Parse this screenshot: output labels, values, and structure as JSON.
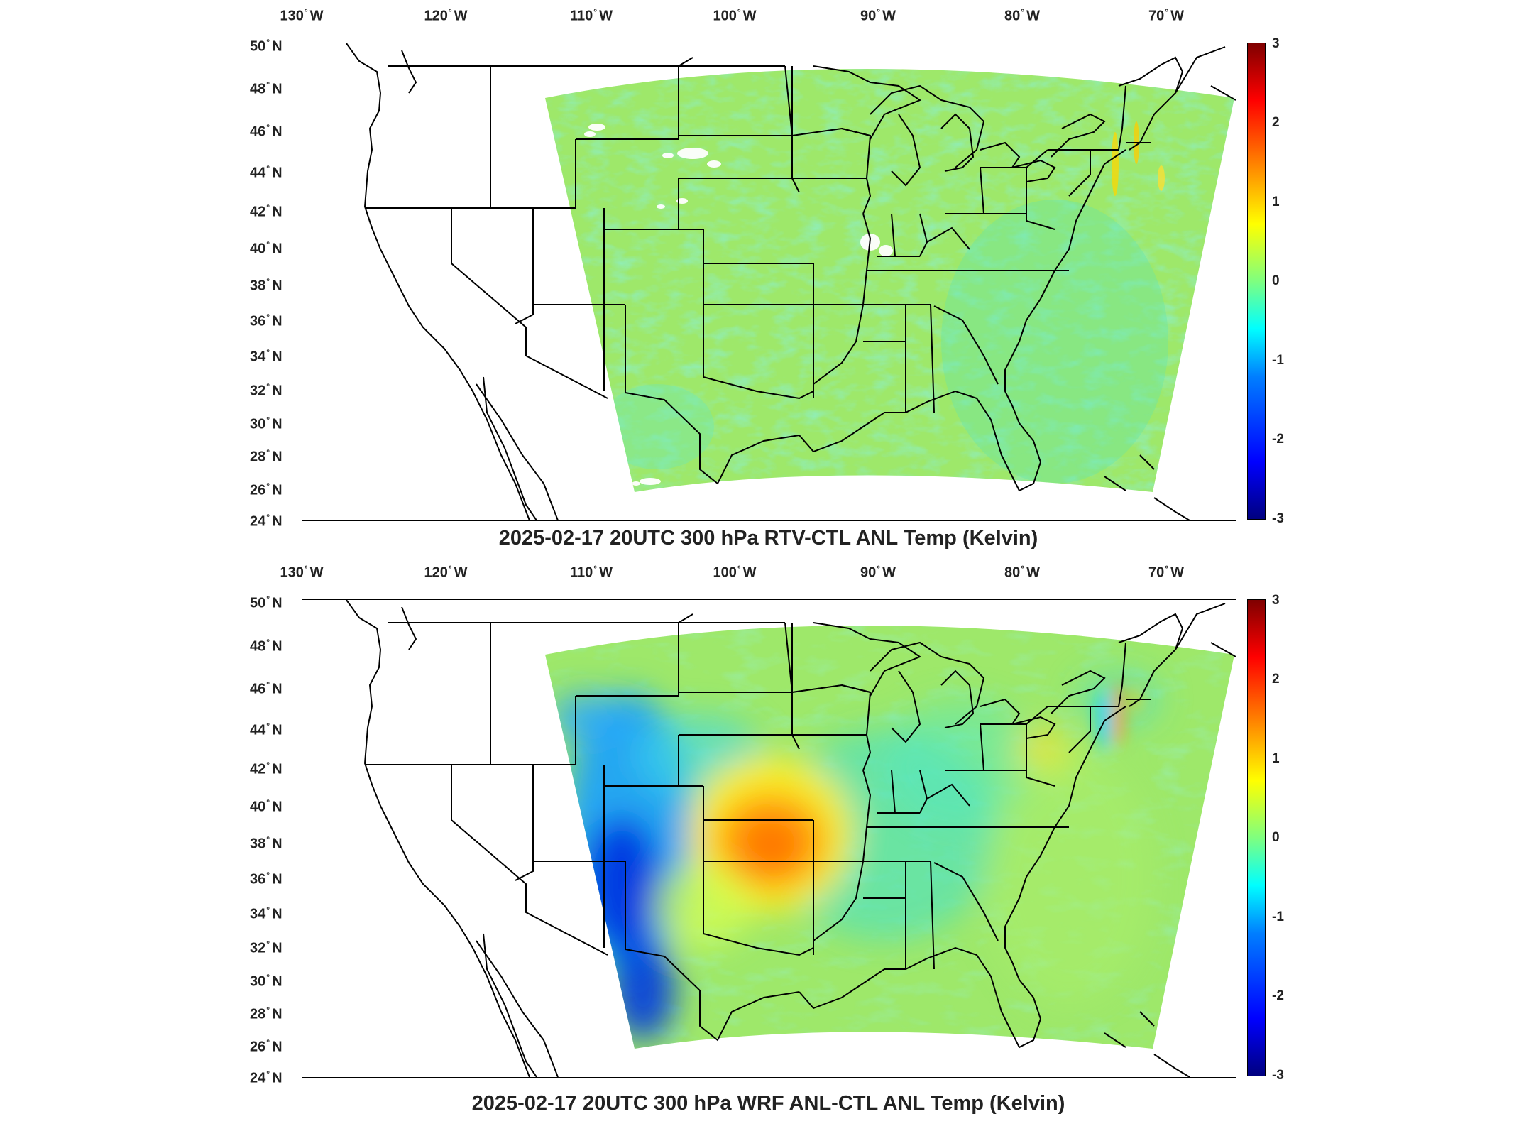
{
  "longitude_labels": [
    "130",
    "120",
    "110",
    "100",
    "90",
    "80",
    "70"
  ],
  "longitude_suffix": "W",
  "latitude_labels": [
    "50",
    "48",
    "46",
    "44",
    "42",
    "40",
    "38",
    "36",
    "34",
    "32",
    "30",
    "28",
    "26",
    "24"
  ],
  "latitude_suffix": "N",
  "colorbar": {
    "ticks": [
      "3",
      "2",
      "1",
      "0",
      "-1",
      "-2",
      "-3"
    ],
    "min": -3,
    "max": 3,
    "colormap": "jet"
  },
  "panels": [
    {
      "title": "2025-02-17 20UTC 300 hPa RTV-CTL ANL Temp (Kelvin)"
    },
    {
      "title": "2025-02-17 20UTC 300 hPa WRF ANL-CTL ANL Temp (Kelvin)"
    }
  ],
  "colors": {
    "field_base": "#9ee86a",
    "field_cool": "#3fe3c5",
    "warm_anomaly": "#ff7a10",
    "cold_anomaly": "#1030d8",
    "coast": "#000000"
  }
}
